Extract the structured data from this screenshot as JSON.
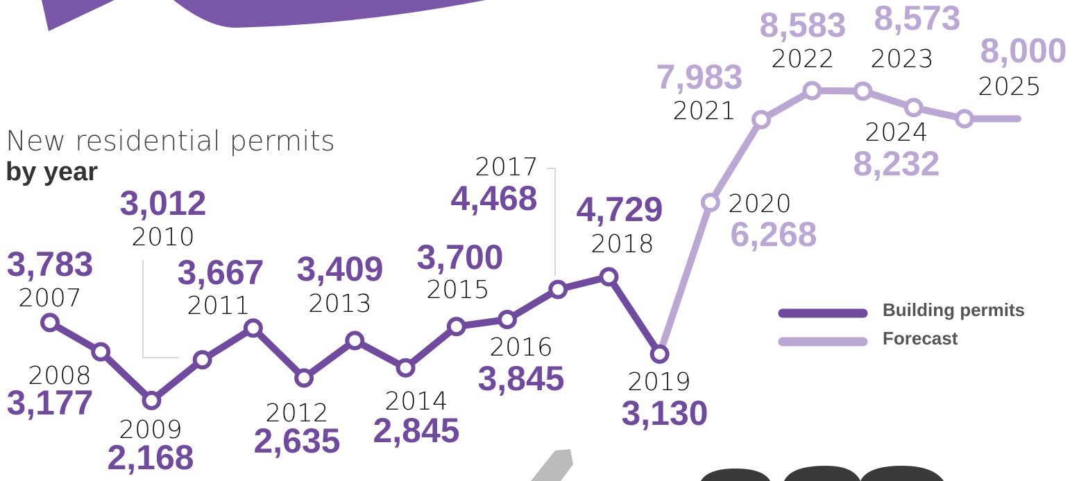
{
  "chart_data": {
    "type": "line",
    "title": "New residential permits",
    "subtitle": "by year",
    "x": [
      2007,
      2008,
      2009,
      2010,
      2011,
      2012,
      2013,
      2014,
      2015,
      2016,
      2017,
      2018,
      2019,
      2020,
      2021,
      2022,
      2023,
      2024,
      2025
    ],
    "xlim": [
      2007,
      2025
    ],
    "ylim": [
      0,
      10000
    ],
    "series": [
      {
        "name": "Building permits",
        "color": "#6f4a9e",
        "values": [
          3783,
          3177,
          2168,
          3012,
          3667,
          2635,
          3409,
          2845,
          3700,
          3845,
          4468,
          4729,
          3130,
          null,
          null,
          null,
          null,
          null,
          null
        ],
        "value_labels": [
          "3,783",
          "3,177",
          "2,168",
          "3,012",
          "3,667",
          "2,635",
          "3,409",
          "2,845",
          "3,700",
          "3,845",
          "4,468",
          "4,729",
          "3,130",
          null,
          null,
          null,
          null,
          null,
          null
        ]
      },
      {
        "name": "Forecast",
        "color": "#bba7d4",
        "values": [
          null,
          null,
          null,
          null,
          null,
          null,
          null,
          null,
          null,
          null,
          null,
          null,
          null,
          6268,
          7983,
          8583,
          8573,
          8232,
          8000
        ],
        "value_labels": [
          null,
          null,
          null,
          null,
          null,
          null,
          null,
          null,
          null,
          null,
          null,
          null,
          null,
          "6,268",
          "7,983",
          "8,583",
          "8,573",
          "8,232",
          "8,000"
        ]
      }
    ],
    "legend": "right"
  }
}
